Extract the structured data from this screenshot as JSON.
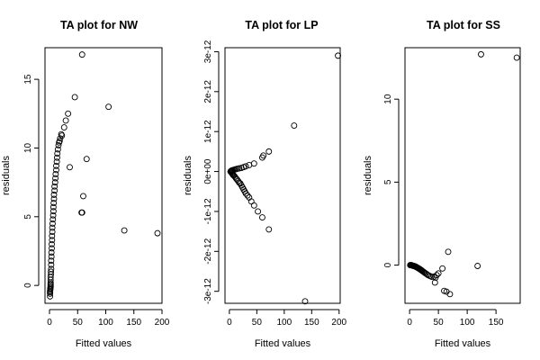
{
  "chart_data": [
    {
      "type": "scatter",
      "title": "TA plot for NW",
      "xlabel": "Fitted values",
      "ylabel": "residuals",
      "xlim": [
        -8,
        200
      ],
      "ylim": [
        -1.3,
        17.3
      ],
      "xticks": [
        0,
        50,
        100,
        150,
        200
      ],
      "yticks": [
        0,
        5,
        10,
        15
      ],
      "xtick_labels": [
        "0",
        "50",
        "100",
        "150",
        "200"
      ],
      "ytick_labels": [
        "0",
        "5",
        "10",
        "15"
      ],
      "points": [
        [
          1,
          -0.8
        ],
        [
          1,
          -0.6
        ],
        [
          1,
          -0.5
        ],
        [
          1,
          -0.4
        ],
        [
          1.5,
          -0.3
        ],
        [
          1.5,
          -0.2
        ],
        [
          2,
          -0.1
        ],
        [
          2,
          0.0
        ],
        [
          2,
          0.1
        ],
        [
          2,
          0.2
        ],
        [
          2,
          0.4
        ],
        [
          2,
          0.6
        ],
        [
          2.5,
          0.8
        ],
        [
          2.5,
          1.0
        ],
        [
          3,
          1.2
        ],
        [
          3,
          1.5
        ],
        [
          3,
          1.8
        ],
        [
          3.5,
          2.1
        ],
        [
          3.5,
          2.4
        ],
        [
          4,
          2.7
        ],
        [
          4,
          3.0
        ],
        [
          4.5,
          3.3
        ],
        [
          4.5,
          3.6
        ],
        [
          5,
          3.9
        ],
        [
          5,
          4.2
        ],
        [
          5.5,
          4.5
        ],
        [
          6,
          4.8
        ],
        [
          6.5,
          5.1
        ],
        [
          7,
          5.4
        ],
        [
          7,
          5.7
        ],
        [
          7.5,
          6.0
        ],
        [
          8,
          6.3
        ],
        [
          8,
          6.6
        ],
        [
          9,
          6.9
        ],
        [
          9,
          7.2
        ],
        [
          10,
          7.5
        ],
        [
          10.5,
          7.8
        ],
        [
          11,
          8.1
        ],
        [
          12,
          8.4
        ],
        [
          12,
          8.7
        ],
        [
          13,
          9.0
        ],
        [
          13.5,
          9.3
        ],
        [
          14,
          9.6
        ],
        [
          15,
          9.9
        ],
        [
          16,
          10.2
        ],
        [
          17,
          10.4
        ],
        [
          19,
          10.7
        ],
        [
          21,
          11.0
        ],
        [
          22,
          10.9
        ],
        [
          18,
          10.5
        ],
        [
          26,
          11.5
        ],
        [
          29,
          12.0
        ],
        [
          33,
          12.5
        ],
        [
          45,
          13.7
        ],
        [
          58,
          16.8
        ],
        [
          105,
          13.0
        ],
        [
          36,
          8.6
        ],
        [
          66,
          9.2
        ],
        [
          60,
          6.5
        ],
        [
          57,
          5.3
        ],
        [
          58,
          5.3
        ],
        [
          133,
          4.0
        ],
        [
          192,
          3.8
        ]
      ]
    },
    {
      "type": "scatter",
      "title": "TA plot for LP",
      "xlabel": "Fitted values",
      "ylabel": "residuals",
      "xlim": [
        -8,
        202
      ],
      "ylim": [
        -3.3e-12,
        3.1e-12
      ],
      "xticks": [
        0,
        50,
        100,
        150,
        200
      ],
      "yticks": [
        -3e-12,
        -2e-12,
        -1e-12,
        0,
        1e-12,
        2e-12,
        3e-12
      ],
      "xtick_labels": [
        "0",
        "50",
        "100",
        "150",
        "200"
      ],
      "ytick_labels": [
        "-3e-12",
        "-2e-12",
        "-1e-12",
        "0e+00",
        "1e-12",
        "2e-12",
        "3e-12"
      ],
      "points": [
        [
          2,
          0.0
        ],
        [
          3,
          1e-14
        ],
        [
          4,
          2e-14
        ],
        [
          5,
          3e-14
        ],
        [
          6,
          3e-14
        ],
        [
          8,
          4e-14
        ],
        [
          10,
          5e-14
        ],
        [
          12,
          6e-14
        ],
        [
          15,
          7e-14
        ],
        [
          18,
          8e-14
        ],
        [
          22,
          9e-14
        ],
        [
          26,
          1.1e-13
        ],
        [
          30,
          1.3e-13
        ],
        [
          36,
          1.6e-13
        ],
        [
          45,
          2e-13
        ],
        [
          60,
          3.5e-13
        ],
        [
          62,
          4e-13
        ],
        [
          72,
          5e-13
        ],
        [
          118,
          1.15e-12
        ],
        [
          198,
          2.9e-12
        ],
        [
          3,
          -1e-14
        ],
        [
          4,
          -3e-14
        ],
        [
          5,
          -5e-14
        ],
        [
          6,
          -7e-14
        ],
        [
          7,
          -9e-14
        ],
        [
          8,
          -1e-13
        ],
        [
          10,
          -1.3e-13
        ],
        [
          12,
          -1.7e-13
        ],
        [
          14,
          -2e-13
        ],
        [
          16,
          -2.4e-13
        ],
        [
          18,
          -2.8e-13
        ],
        [
          20,
          -3e-13
        ],
        [
          22,
          -3.5e-13
        ],
        [
          24,
          -4e-13
        ],
        [
          26,
          -4.5e-13
        ],
        [
          28,
          -5e-13
        ],
        [
          30,
          -5.5e-13
        ],
        [
          33,
          -6e-13
        ],
        [
          36,
          -6.5e-13
        ],
        [
          40,
          -7.5e-13
        ],
        [
          45,
          -8.5e-13
        ],
        [
          52,
          -1e-12
        ],
        [
          60,
          -1.15e-12
        ],
        [
          72,
          -1.45e-12
        ],
        [
          138,
          -3.25e-12
        ]
      ]
    },
    {
      "type": "scatter",
      "title": "TA plot for SS",
      "xlabel": "Fitted values",
      "ylabel": "residuals",
      "xlim": [
        -8,
        192
      ],
      "ylim": [
        -2.3,
        13.1
      ],
      "xticks": [
        0,
        50,
        100,
        150
      ],
      "yticks": [
        0,
        5,
        10
      ],
      "xtick_labels": [
        "0",
        "50",
        "100",
        "150"
      ],
      "ytick_labels": [
        "0",
        "5",
        "10"
      ],
      "points": [
        [
          1,
          0.0
        ],
        [
          2,
          0.0
        ],
        [
          3,
          0.0
        ],
        [
          4,
          -0.02
        ],
        [
          5,
          -0.03
        ],
        [
          6,
          -0.04
        ],
        [
          7,
          -0.05
        ],
        [
          8,
          -0.06
        ],
        [
          9,
          -0.07
        ],
        [
          10,
          -0.08
        ],
        [
          11,
          -0.1
        ],
        [
          12,
          -0.12
        ],
        [
          13,
          -0.14
        ],
        [
          14,
          -0.16
        ],
        [
          15,
          -0.18
        ],
        [
          16,
          -0.2
        ],
        [
          17,
          -0.22
        ],
        [
          18,
          -0.25
        ],
        [
          19,
          -0.27
        ],
        [
          20,
          -0.3
        ],
        [
          21,
          -0.32
        ],
        [
          22,
          -0.35
        ],
        [
          24,
          -0.4
        ],
        [
          26,
          -0.45
        ],
        [
          28,
          -0.5
        ],
        [
          30,
          -0.55
        ],
        [
          32,
          -0.6
        ],
        [
          35,
          -0.65
        ],
        [
          38,
          -0.7
        ],
        [
          42,
          -0.7
        ],
        [
          45,
          -0.75
        ],
        [
          47,
          -0.6
        ],
        [
          44,
          -1.05
        ],
        [
          50,
          -0.5
        ],
        [
          57,
          -0.2
        ],
        [
          60,
          -1.55
        ],
        [
          64,
          -1.6
        ],
        [
          70,
          -1.75
        ],
        [
          67,
          0.8
        ],
        [
          118,
          -0.05
        ],
        [
          124,
          12.7
        ],
        [
          186,
          12.5
        ]
      ]
    }
  ]
}
